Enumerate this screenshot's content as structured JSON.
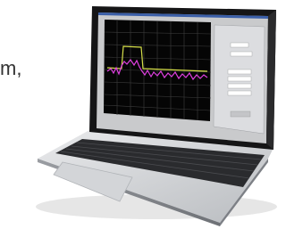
{
  "caption": "m,"
}
